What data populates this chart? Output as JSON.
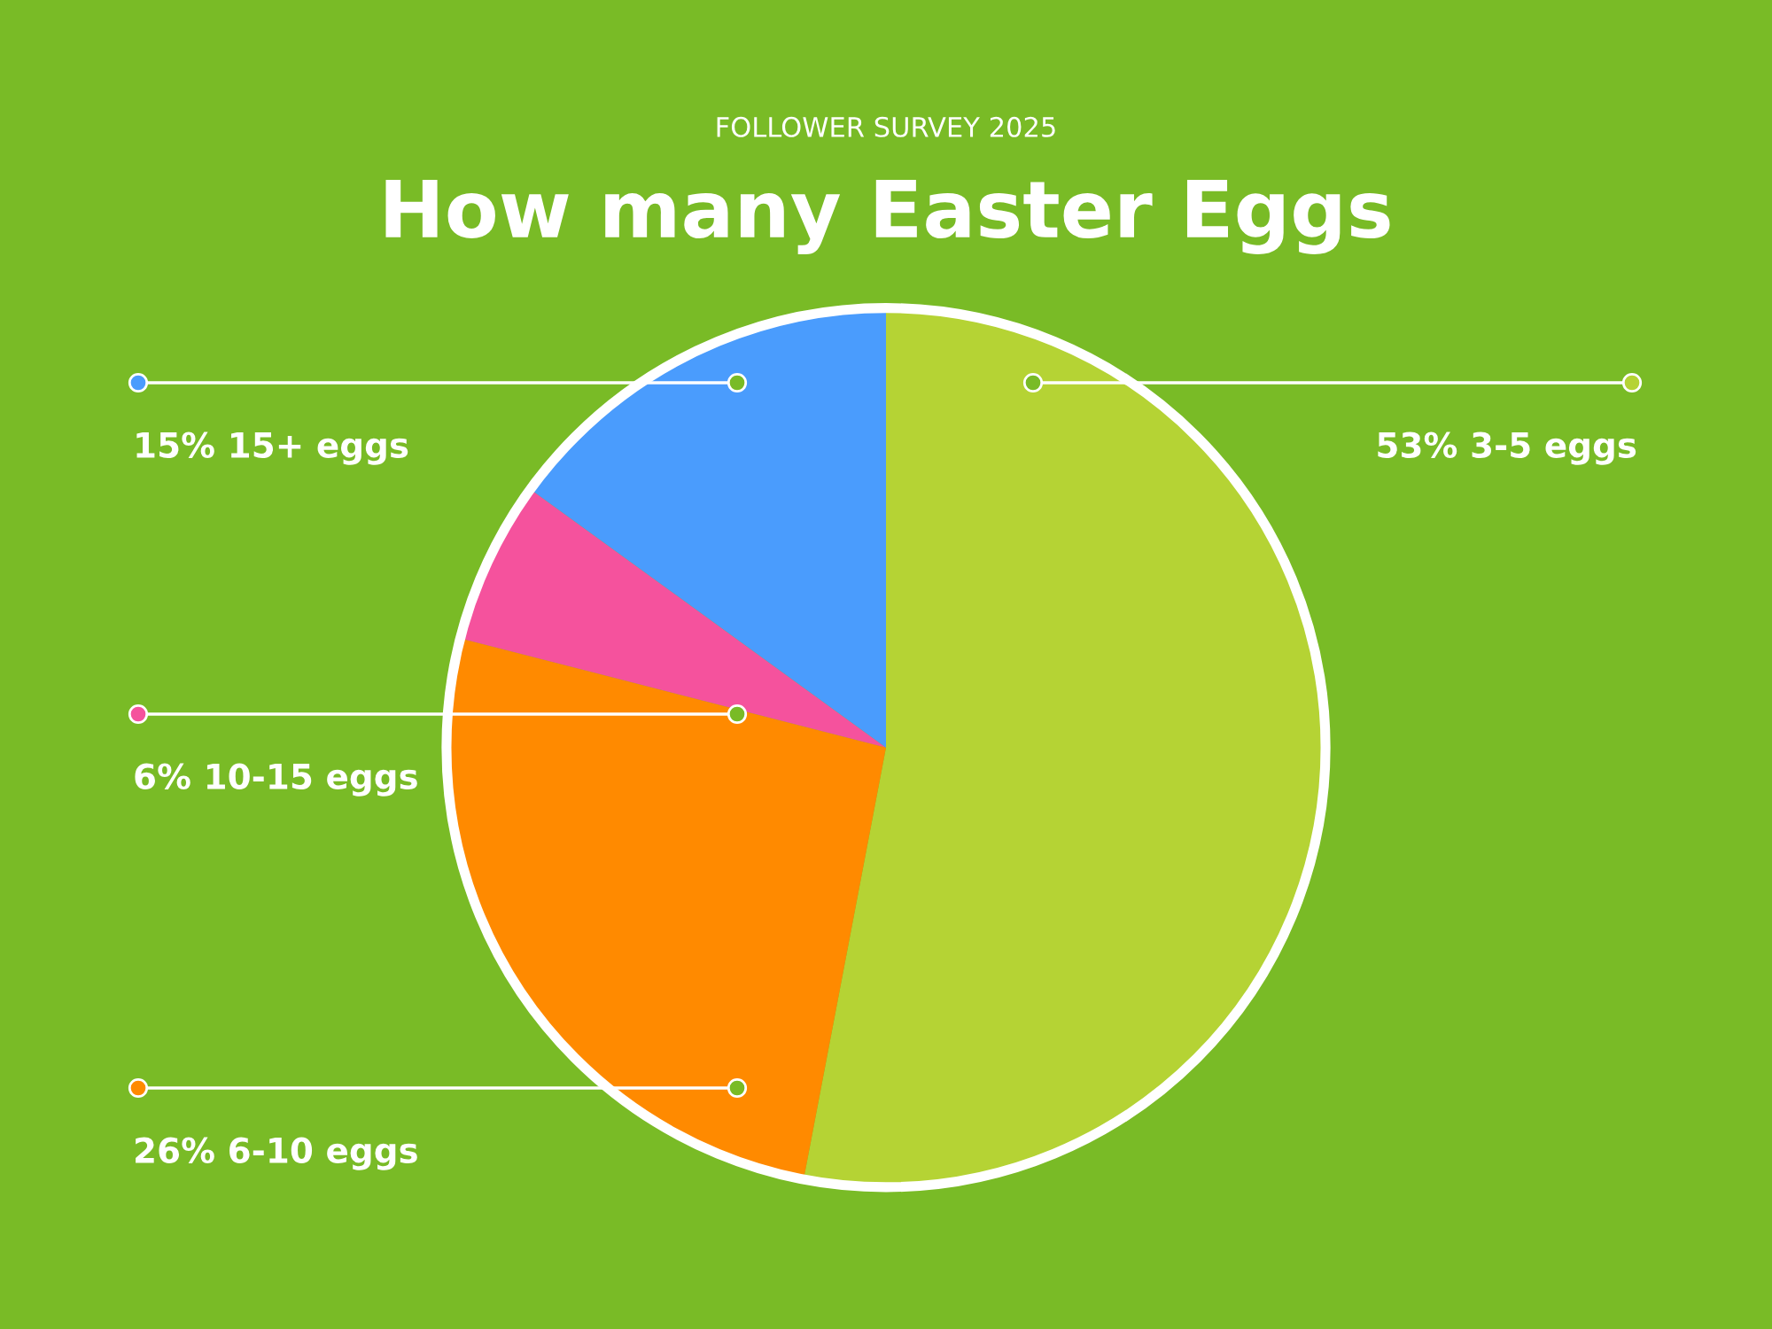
{
  "chart_data": {
    "type": "pie",
    "title": "How many Easter Eggs",
    "subtitle": "FOLLOWER SURVEY 2025",
    "categories": [
      "3-5 eggs",
      "6-10 eggs",
      "10-15 eggs",
      "15+ eggs"
    ],
    "values": [
      53,
      26,
      6,
      15
    ],
    "value_labels": [
      "53%",
      "26%",
      "6%",
      "15%"
    ],
    "colors": [
      "#b5d334",
      "#ff8a00",
      "#f5529d",
      "#4a9cfd"
    ],
    "legend": "left"
  }
}
